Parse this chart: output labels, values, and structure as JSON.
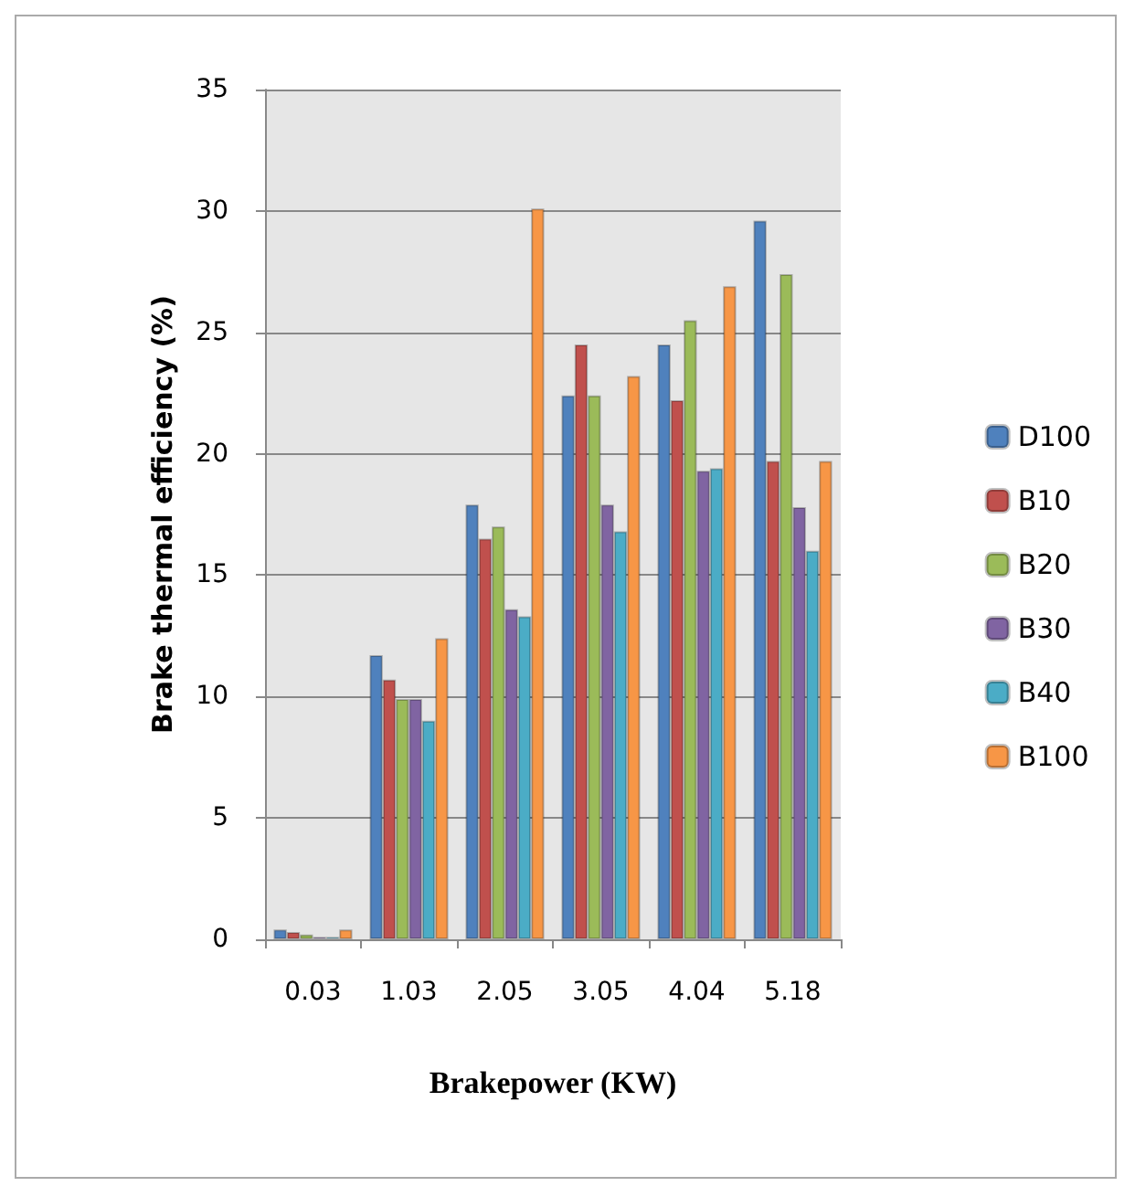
{
  "chart_data": {
    "type": "bar",
    "xlabel": "Brakepower (KW)",
    "ylabel": "Brake thermal efficiency (%)",
    "categories": [
      "0.03",
      "1.03",
      "2.05",
      "3.05",
      "4.04",
      "5.18"
    ],
    "series": [
      {
        "name": "D100",
        "color": "#4f81bd",
        "values": [
          0.4,
          11.7,
          17.9,
          22.4,
          24.5,
          29.6
        ]
      },
      {
        "name": "B10",
        "color": "#c0504d",
        "values": [
          0.3,
          10.7,
          16.5,
          24.5,
          22.2,
          19.7
        ]
      },
      {
        "name": "B20",
        "color": "#9bbb59",
        "values": [
          0.2,
          9.9,
          17.0,
          22.4,
          25.5,
          27.4
        ]
      },
      {
        "name": "B30",
        "color": "#8064a2",
        "values": [
          0.1,
          9.9,
          13.6,
          17.9,
          19.3,
          17.8
        ]
      },
      {
        "name": "B40",
        "color": "#4bacc6",
        "values": [
          0.1,
          9.0,
          13.3,
          16.8,
          19.4,
          16.0
        ]
      },
      {
        "name": "B100",
        "color": "#f79646",
        "values": [
          0.4,
          12.4,
          30.1,
          23.2,
          26.9,
          19.7
        ]
      }
    ],
    "ylim": [
      0,
      35
    ],
    "yticks": [
      0,
      5,
      10,
      15,
      20,
      25,
      30,
      35
    ],
    "grid": "y",
    "legend": "right"
  }
}
